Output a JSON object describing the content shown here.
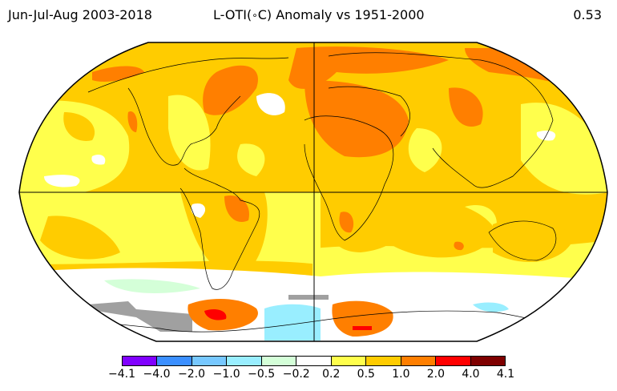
{
  "header": {
    "period": "Jun-Jul-Aug 2003-2018",
    "title": "L-OTI(∘C) Anomaly vs 1951-2000",
    "title_prefix": "L-OTI(",
    "title_degree": "∘",
    "title_suffix": "C) Anomaly vs 1951-2000",
    "global_mean": "0.53"
  },
  "colorbar": {
    "colors": [
      "#8000ff",
      "#3b8fff",
      "#77c8ff",
      "#99eeff",
      "#d4ffd8",
      "#ffffff",
      "#ffff4c",
      "#ffcc00",
      "#ff7f00",
      "#ff0000",
      "#7f0000"
    ],
    "tick_labels": [
      "−4.1",
      "−4.0",
      "−2.0",
      "−1.0",
      "−0.5",
      "−0.2",
      "0.2",
      "0.5",
      "1.0",
      "2.0",
      "4.0",
      "4.1"
    ]
  },
  "map": {
    "colors": {
      "ocean_base": "#ffcc00",
      "light": "#ffff4c",
      "white": "#ffffff",
      "orange": "#ff7f00",
      "red": "#ff0000",
      "mint": "#d4ffd8",
      "cyan": "#99eeff",
      "sky": "#77c8ff",
      "gray": "#a0a0a0"
    }
  }
}
